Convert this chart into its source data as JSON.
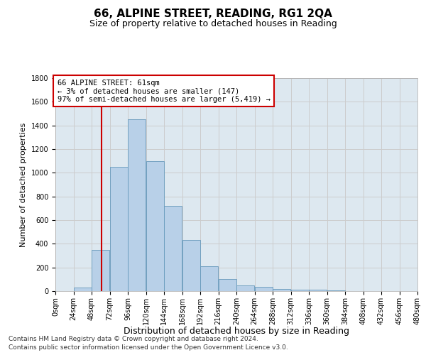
{
  "title": "66, ALPINE STREET, READING, RG1 2QA",
  "subtitle": "Size of property relative to detached houses in Reading",
  "xlabel": "Distribution of detached houses by size in Reading",
  "ylabel": "Number of detached properties",
  "footnote1": "Contains HM Land Registry data © Crown copyright and database right 2024.",
  "footnote2": "Contains public sector information licensed under the Open Government Licence v3.0.",
  "annotation_line1": "66 ALPINE STREET: 61sqm",
  "annotation_line2": "← 3% of detached houses are smaller (147)",
  "annotation_line3": "97% of semi-detached houses are larger (5,419) →",
  "property_size_sqm": 61,
  "bin_edges": [
    0,
    24,
    48,
    72,
    96,
    120,
    144,
    168,
    192,
    216,
    240,
    264,
    288,
    312,
    336,
    360,
    384,
    408,
    432,
    456,
    480
  ],
  "bar_heights": [
    0,
    30,
    350,
    1050,
    1450,
    1100,
    720,
    430,
    210,
    100,
    50,
    35,
    20,
    15,
    10,
    5,
    2,
    1,
    0,
    0
  ],
  "bar_color": "#b8d0e8",
  "bar_edge_color": "#6699bb",
  "red_line_color": "#cc0000",
  "annotation_box_edge": "#cc0000",
  "grid_color": "#cccccc",
  "background_color": "#dde8f0",
  "ylim": [
    0,
    1800
  ],
  "yticks": [
    0,
    200,
    400,
    600,
    800,
    1000,
    1200,
    1400,
    1600,
    1800
  ],
  "title_fontsize": 11,
  "subtitle_fontsize": 9,
  "xlabel_fontsize": 9,
  "ylabel_fontsize": 8,
  "tick_fontsize": 7,
  "annotation_fontsize": 7.5,
  "footnote_fontsize": 6.5
}
